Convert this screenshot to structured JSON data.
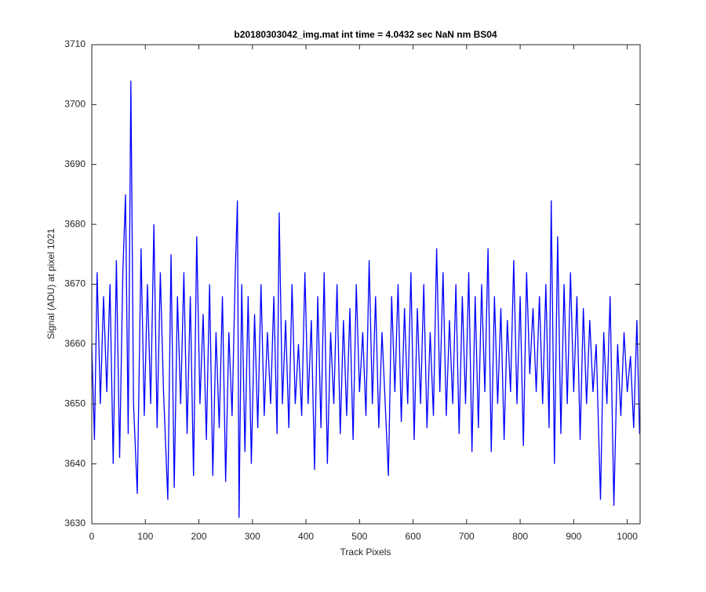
{
  "chart_data": {
    "type": "line",
    "title": "b20180303042_img.mat int time = 4.0432 sec  NaN nm BS04",
    "x_label": "Track Pixels",
    "y_label": "Signal (ADU) at pixel 1021",
    "x": [
      0,
      5,
      10,
      16,
      22,
      28,
      34,
      40,
      46,
      52,
      58,
      63,
      68,
      73,
      78,
      85,
      92,
      98,
      104,
      110,
      116,
      122,
      128,
      134,
      142,
      148,
      154,
      160,
      166,
      172,
      178,
      184,
      190,
      196,
      202,
      208,
      214,
      220,
      226,
      232,
      238,
      244,
      250,
      256,
      262,
      268,
      272,
      275,
      280,
      286,
      292,
      298,
      304,
      310,
      316,
      322,
      328,
      334,
      340,
      346,
      350,
      356,
      362,
      368,
      374,
      380,
      386,
      392,
      398,
      404,
      410,
      416,
      422,
      428,
      434,
      440,
      446,
      452,
      458,
      464,
      470,
      476,
      482,
      488,
      494,
      500,
      506,
      512,
      518,
      524,
      530,
      536,
      542,
      548,
      554,
      560,
      566,
      572,
      578,
      584,
      590,
      596,
      602,
      608,
      614,
      620,
      626,
      632,
      638,
      644,
      650,
      656,
      662,
      668,
      674,
      680,
      686,
      692,
      698,
      704,
      710,
      716,
      722,
      728,
      734,
      740,
      746,
      752,
      758,
      764,
      770,
      776,
      782,
      788,
      794,
      800,
      806,
      812,
      818,
      824,
      830,
      836,
      842,
      848,
      854,
      858,
      864,
      870,
      876,
      882,
      888,
      894,
      900,
      906,
      912,
      918,
      924,
      930,
      936,
      942,
      950,
      956,
      962,
      968,
      975,
      982,
      988,
      994,
      1000,
      1006,
      1012,
      1018,
      1023
    ],
    "series": [
      {
        "name": "signal",
        "color": "#0000ff",
        "values": [
          3660,
          3644,
          3672,
          3650,
          3668,
          3652,
          3670,
          3640,
          3674,
          3641,
          3672,
          3685,
          3645,
          3704,
          3650,
          3635,
          3676,
          3648,
          3670,
          3650,
          3680,
          3646,
          3672,
          3652,
          3634,
          3675,
          3636,
          3668,
          3650,
          3672,
          3645,
          3668,
          3638,
          3678,
          3650,
          3665,
          3644,
          3670,
          3638,
          3662,
          3646,
          3668,
          3637,
          3662,
          3648,
          3672,
          3684,
          3631,
          3670,
          3642,
          3668,
          3640,
          3665,
          3646,
          3670,
          3648,
          3662,
          3650,
          3668,
          3645,
          3682,
          3650,
          3664,
          3646,
          3670,
          3650,
          3660,
          3648,
          3672,
          3650,
          3664,
          3639,
          3668,
          3646,
          3672,
          3640,
          3662,
          3650,
          3670,
          3645,
          3664,
          3648,
          3666,
          3644,
          3670,
          3652,
          3662,
          3648,
          3674,
          3650,
          3668,
          3646,
          3662,
          3650,
          3638,
          3668,
          3652,
          3670,
          3647,
          3666,
          3650,
          3672,
          3644,
          3666,
          3650,
          3670,
          3646,
          3662,
          3648,
          3676,
          3652,
          3672,
          3648,
          3664,
          3650,
          3670,
          3645,
          3668,
          3650,
          3672,
          3642,
          3668,
          3646,
          3670,
          3652,
          3676,
          3642,
          3668,
          3650,
          3666,
          3644,
          3664,
          3652,
          3674,
          3650,
          3668,
          3643,
          3672,
          3655,
          3666,
          3652,
          3668,
          3650,
          3670,
          3646,
          3684,
          3640,
          3678,
          3645,
          3670,
          3650,
          3672,
          3652,
          3668,
          3644,
          3666,
          3650,
          3664,
          3652,
          3660,
          3634,
          3662,
          3650,
          3668,
          3633,
          3660,
          3648,
          3662,
          3652,
          3658,
          3646,
          3664,
          3645
        ]
      }
    ],
    "xlim": [
      0,
      1024
    ],
    "ylim": [
      3630,
      3710
    ],
    "xticks": [
      0,
      100,
      200,
      300,
      400,
      500,
      600,
      700,
      800,
      900,
      1000
    ],
    "yticks": [
      3630,
      3640,
      3650,
      3660,
      3670,
      3680,
      3690,
      3700,
      3710
    ]
  }
}
